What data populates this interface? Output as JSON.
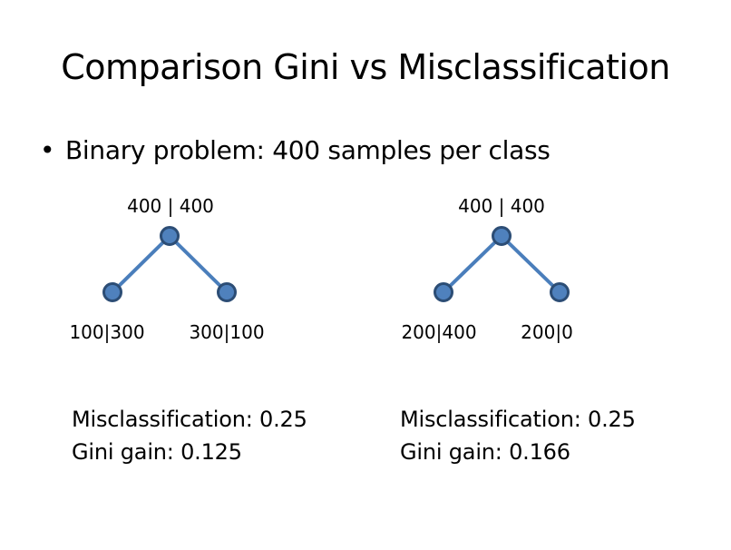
{
  "title": "Comparison Gini vs Misclassification",
  "bullet": {
    "symbol": "•",
    "text": "Binary problem: 400 samples per class"
  },
  "colors": {
    "edge": "#4a7ebb",
    "node_fill": "#4f81bd",
    "node_stroke": "#2c4d75"
  },
  "trees": [
    {
      "root_label": "400 | 400",
      "left_label": "100|300",
      "right_label": "300|100",
      "misclassification": "Misclassification: 0.25",
      "gini": "Gini gain: 0.125"
    },
    {
      "root_label": "400 | 400",
      "left_label": "200|400",
      "right_label": "200|0",
      "misclassification": "Misclassification: 0.25",
      "gini": "Gini gain: 0.166"
    }
  ]
}
